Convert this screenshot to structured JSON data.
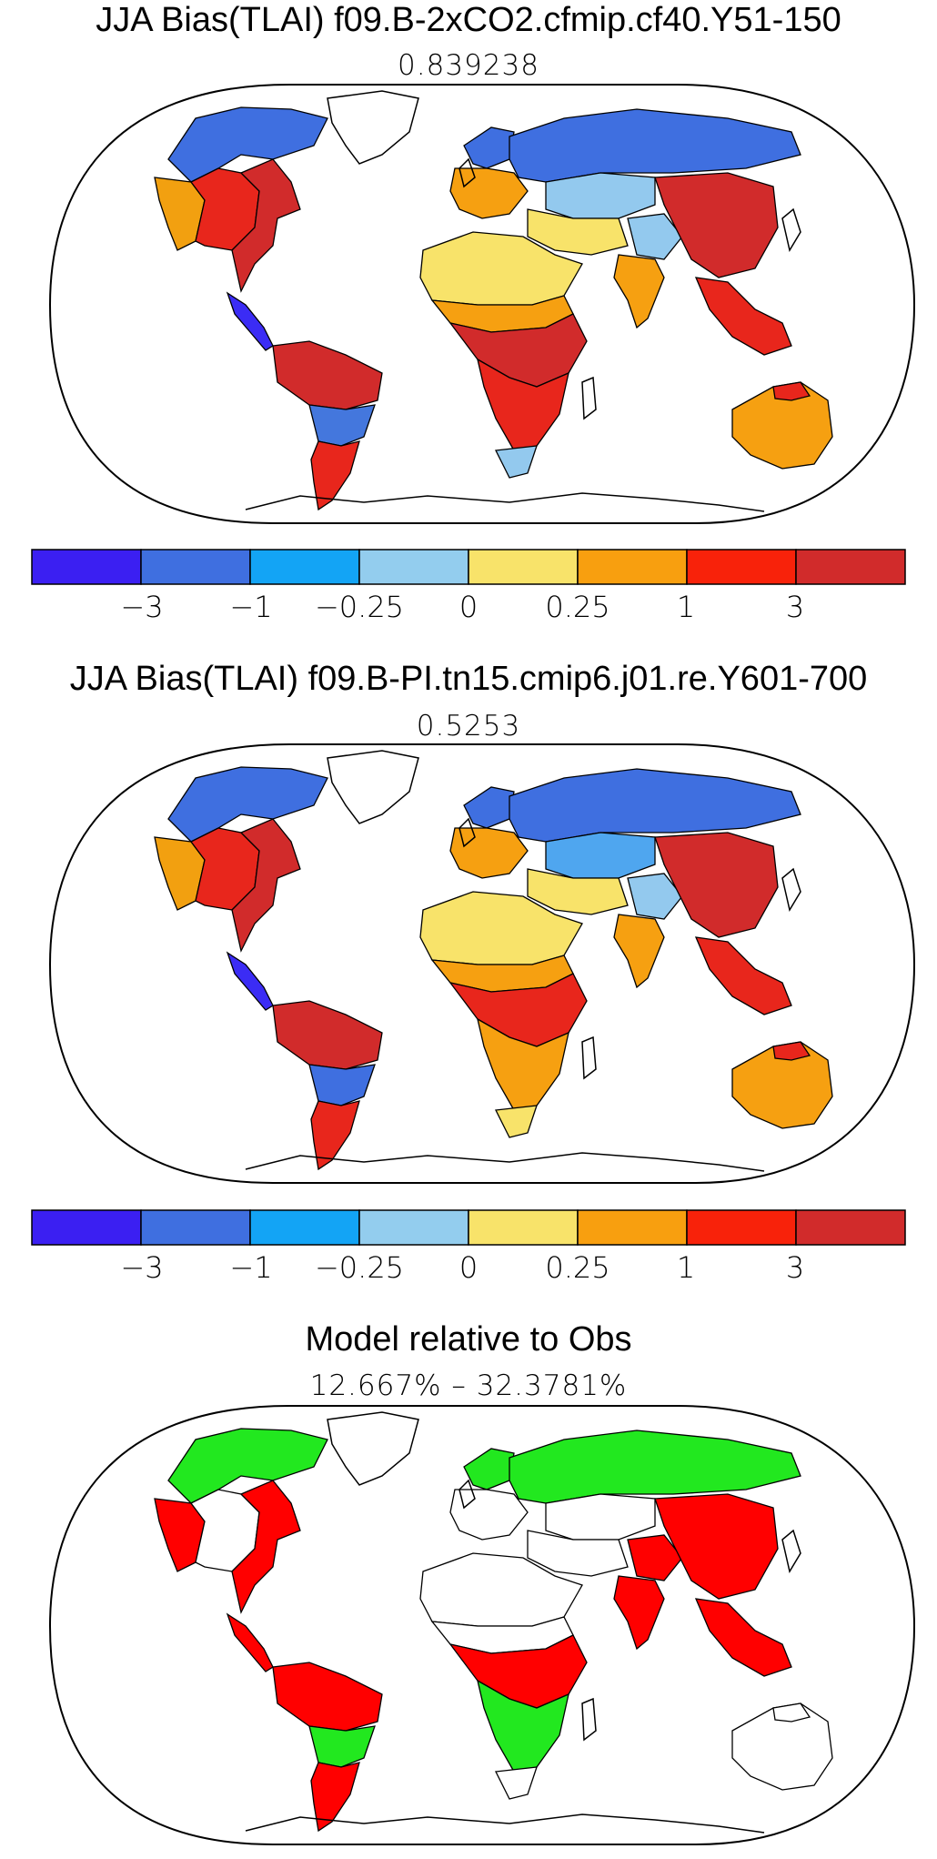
{
  "panels": [
    {
      "title": "JJA Bias(TLAI) f09.B-2xCO2.cfmip.cf40.Y51-150",
      "subtitle": "0.839238",
      "region_colors": {
        "na_north": "#3f6fe0",
        "na_central": "#e8261c",
        "na_east": "#d12b2b",
        "na_west": "#f2a010",
        "central_america": "#3b2cf5",
        "sa_north": "#d12b2b",
        "sa_central": "#4477dd",
        "sa_south": "#e8261c",
        "europe": "#f6a011",
        "scandinavia": "#3f6fe0",
        "russia": "#3f6fe0",
        "siberia_mid": "#93c9ee",
        "central_asia": "#f8e36a",
        "sahara": "#f8e36a",
        "sahel": "#f6a011",
        "central_africa": "#d12b2b",
        "southern_africa": "#e8261c",
        "south_africa_tip": "#93c9ee",
        "china": "#d12b2b",
        "india": "#f6a011",
        "se_asia": "#e8261c",
        "australia": "#f6a011",
        "australia_north": "#e8261c",
        "tibet": "#93c9ee"
      }
    },
    {
      "title": "JJA Bias(TLAI) f09.B-PI.tn15.cmip6.j01.re.Y601-700",
      "subtitle": "0.5253",
      "region_colors": {
        "na_north": "#3f6fe0",
        "na_central": "#e8261c",
        "na_east": "#d12b2b",
        "na_west": "#f2a010",
        "central_america": "#3b2cf5",
        "sa_north": "#d12b2b",
        "sa_central": "#3f6fe0",
        "sa_south": "#e8261c",
        "europe": "#f6a011",
        "scandinavia": "#3f6fe0",
        "russia": "#3f6fe0",
        "siberia_mid": "#4fa6ef",
        "central_asia": "#f8e36a",
        "sahara": "#f8e36a",
        "sahel": "#f6a011",
        "central_africa": "#e8261c",
        "southern_africa": "#f6a011",
        "south_africa_tip": "#f8e36a",
        "china": "#d12b2b",
        "india": "#f6a011",
        "se_asia": "#e8261c",
        "australia": "#f6a011",
        "australia_north": "#e8261c",
        "tibet": "#93c9ee"
      }
    },
    {
      "title": "Model relative to Obs",
      "subtitle": "12.667% – 32.3781%",
      "region_colors": {
        "na_north": "#22e81f",
        "na_central": "#ffffff",
        "na_east": "#ff0000",
        "na_west": "#ff0000",
        "central_america": "#ff0000",
        "sa_north": "#ff0000",
        "sa_central": "#22e81f",
        "sa_south": "#ff0000",
        "europe": "#ffffff",
        "scandinavia": "#22e81f",
        "russia": "#22e81f",
        "siberia_mid": "#ffffff",
        "central_asia": "#ffffff",
        "sahara": "#ffffff",
        "sahel": "#ffffff",
        "central_africa": "#ff0000",
        "southern_africa": "#22e81f",
        "south_africa_tip": "#ffffff",
        "china": "#ff0000",
        "india": "#ff0000",
        "se_asia": "#ff0000",
        "australia": "#ffffff",
        "australia_north": "#ffffff",
        "tibet": "#ff0000"
      }
    }
  ],
  "colorbar": {
    "colors": [
      "#3b1ff2",
      "#3f6fe0",
      "#13a4f5",
      "#93cdee",
      "#f8e36a",
      "#f89f0f",
      "#f8220a",
      "#d12b2b"
    ],
    "tick_labels": [
      "−3",
      "−1",
      "−0.25",
      "0",
      "0.25",
      "1",
      "3"
    ]
  },
  "colors": {
    "land_outline": "#000000",
    "map_border": "#000000",
    "ocean": "#ffffff"
  }
}
